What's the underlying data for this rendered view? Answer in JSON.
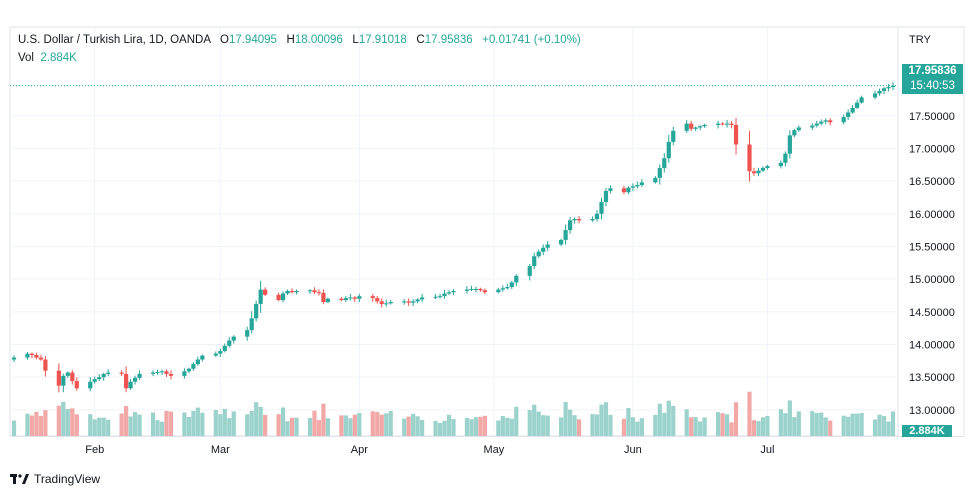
{
  "legend": {
    "symbol": "U.S. Dollar / Turkish Lira, 1D, OANDA",
    "open_label": "O",
    "open": "17.94095",
    "high_label": "H",
    "high": "18.00096",
    "low_label": "L",
    "low": "17.91018",
    "close_label": "C",
    "close": "17.95836",
    "change": "+0.01741 (+0.10%)",
    "vol_label": "Vol",
    "vol_value": "2.884K"
  },
  "axis": {
    "currency": "TRY",
    "last_price": "17.95836",
    "countdown": "15:40:53",
    "last_volume": "2.884K"
  },
  "brand": {
    "name": "TradingView"
  },
  "colors": {
    "up": "#26a69a",
    "down": "#ef5350",
    "vol_up": "#9bd3cc",
    "vol_down": "#f2a8a6",
    "grid": "#f0f3fa"
  },
  "chart_data": {
    "type": "candlestick",
    "y_ticks": [
      "13.00000",
      "13.50000",
      "14.00000",
      "14.50000",
      "15.00000",
      "15.50000",
      "16.00000",
      "16.50000",
      "17.00000",
      "17.50000"
    ],
    "ylim": [
      12.6,
      18.2
    ],
    "x_ticks": [
      "Feb",
      "Mar",
      "Apr",
      "May",
      "Jun",
      "Jul"
    ],
    "series": [
      {
        "name": "USDTRY",
        "points": [
          {
            "d": "2022-01-14",
            "c": 13.8
          },
          {
            "d": "2022-01-17",
            "c": 13.86
          },
          {
            "d": "2022-01-18",
            "c": 13.84
          },
          {
            "d": "2022-01-19",
            "c": 13.8
          },
          {
            "d": "2022-01-20",
            "c": 13.77
          },
          {
            "d": "2022-01-21",
            "c": 13.6
          },
          {
            "d": "2022-01-24",
            "c": 13.37
          },
          {
            "d": "2022-01-25",
            "c": 13.52
          },
          {
            "d": "2022-01-26",
            "c": 13.57
          },
          {
            "d": "2022-01-27",
            "c": 13.44
          },
          {
            "d": "2022-01-28",
            "c": 13.33
          },
          {
            "d": "2022-01-31",
            "c": 13.43
          },
          {
            "d": "2022-02-01",
            "c": 13.47
          },
          {
            "d": "2022-02-02",
            "c": 13.5
          },
          {
            "d": "2022-02-03",
            "c": 13.55
          },
          {
            "d": "2022-02-04",
            "c": 13.57
          },
          {
            "d": "2022-02-07",
            "c": 13.55
          },
          {
            "d": "2022-02-08",
            "c": 13.33
          },
          {
            "d": "2022-02-09",
            "c": 13.43
          },
          {
            "d": "2022-02-10",
            "c": 13.49
          },
          {
            "d": "2022-02-11",
            "c": 13.55
          },
          {
            "d": "2022-02-14",
            "c": 13.57
          },
          {
            "d": "2022-02-15",
            "c": 13.58
          },
          {
            "d": "2022-02-16",
            "c": 13.59
          },
          {
            "d": "2022-02-17",
            "c": 13.55
          },
          {
            "d": "2022-02-18",
            "c": 13.52
          },
          {
            "d": "2022-02-21",
            "c": 13.59
          },
          {
            "d": "2022-02-22",
            "c": 13.63
          },
          {
            "d": "2022-02-23",
            "c": 13.7
          },
          {
            "d": "2022-02-24",
            "c": 13.77
          },
          {
            "d": "2022-02-25",
            "c": 13.83
          },
          {
            "d": "2022-02-28",
            "c": 13.86
          },
          {
            "d": "2022-03-01",
            "c": 13.9
          },
          {
            "d": "2022-03-02",
            "c": 13.98
          },
          {
            "d": "2022-03-03",
            "c": 14.06
          },
          {
            "d": "2022-03-04",
            "c": 14.12
          },
          {
            "d": "2022-03-07",
            "c": 14.22
          },
          {
            "d": "2022-03-08",
            "c": 14.4
          },
          {
            "d": "2022-03-09",
            "c": 14.62
          },
          {
            "d": "2022-03-10",
            "c": 14.84
          },
          {
            "d": "2022-03-11",
            "c": 14.76
          },
          {
            "d": "2022-03-14",
            "c": 14.68
          },
          {
            "d": "2022-03-15",
            "c": 14.78
          },
          {
            "d": "2022-03-16",
            "c": 14.82
          },
          {
            "d": "2022-03-17",
            "c": 14.8
          },
          {
            "d": "2022-03-18",
            "c": 14.82
          },
          {
            "d": "2022-03-21",
            "c": 14.83
          },
          {
            "d": "2022-03-22",
            "c": 14.8
          },
          {
            "d": "2022-03-23",
            "c": 14.79
          },
          {
            "d": "2022-03-24",
            "c": 14.65
          },
          {
            "d": "2022-03-25",
            "c": 14.7
          },
          {
            "d": "2022-03-28",
            "c": 14.68
          },
          {
            "d": "2022-03-29",
            "c": 14.71
          },
          {
            "d": "2022-03-30",
            "c": 14.72
          },
          {
            "d": "2022-03-31",
            "c": 14.7
          },
          {
            "d": "2022-04-01",
            "c": 14.74
          },
          {
            "d": "2022-04-04",
            "c": 14.71
          },
          {
            "d": "2022-04-05",
            "c": 14.66
          },
          {
            "d": "2022-04-06",
            "c": 14.62
          },
          {
            "d": "2022-04-07",
            "c": 14.63
          },
          {
            "d": "2022-04-08",
            "c": 14.65
          },
          {
            "d": "2022-04-11",
            "c": 14.66
          },
          {
            "d": "2022-04-12",
            "c": 14.64
          },
          {
            "d": "2022-04-13",
            "c": 14.66
          },
          {
            "d": "2022-04-14",
            "c": 14.69
          },
          {
            "d": "2022-04-15",
            "c": 14.72
          },
          {
            "d": "2022-04-18",
            "c": 14.73
          },
          {
            "d": "2022-04-19",
            "c": 14.74
          },
          {
            "d": "2022-04-20",
            "c": 14.78
          },
          {
            "d": "2022-04-21",
            "c": 14.8
          },
          {
            "d": "2022-04-22",
            "c": 14.82
          },
          {
            "d": "2022-04-25",
            "c": 14.84
          },
          {
            "d": "2022-04-26",
            "c": 14.85
          },
          {
            "d": "2022-04-27",
            "c": 14.85
          },
          {
            "d": "2022-04-28",
            "c": 14.83
          },
          {
            "d": "2022-04-29",
            "c": 14.8
          },
          {
            "d": "2022-05-02",
            "c": 14.84
          },
          {
            "d": "2022-05-03",
            "c": 14.86
          },
          {
            "d": "2022-05-04",
            "c": 14.88
          },
          {
            "d": "2022-05-05",
            "c": 14.95
          },
          {
            "d": "2022-05-06",
            "c": 15.05
          },
          {
            "d": "2022-05-09",
            "c": 15.2
          },
          {
            "d": "2022-05-10",
            "c": 15.35
          },
          {
            "d": "2022-05-11",
            "c": 15.42
          },
          {
            "d": "2022-05-12",
            "c": 15.48
          },
          {
            "d": "2022-05-13",
            "c": 15.53
          },
          {
            "d": "2022-05-16",
            "c": 15.6
          },
          {
            "d": "2022-05-17",
            "c": 15.75
          },
          {
            "d": "2022-05-18",
            "c": 15.9
          },
          {
            "d": "2022-05-19",
            "c": 15.92
          },
          {
            "d": "2022-05-20",
            "c": 15.9
          },
          {
            "d": "2022-05-23",
            "c": 15.92
          },
          {
            "d": "2022-05-24",
            "c": 16.0
          },
          {
            "d": "2022-05-25",
            "c": 16.18
          },
          {
            "d": "2022-05-26",
            "c": 16.35
          },
          {
            "d": "2022-05-27",
            "c": 16.39
          },
          {
            "d": "2022-05-30",
            "c": 16.33
          },
          {
            "d": "2022-05-31",
            "c": 16.4
          },
          {
            "d": "2022-06-01",
            "c": 16.42
          },
          {
            "d": "2022-06-02",
            "c": 16.44
          },
          {
            "d": "2022-06-03",
            "c": 16.48
          },
          {
            "d": "2022-06-06",
            "c": 16.55
          },
          {
            "d": "2022-06-07",
            "c": 16.7
          },
          {
            "d": "2022-06-08",
            "c": 16.85
          },
          {
            "d": "2022-06-09",
            "c": 17.1
          },
          {
            "d": "2022-06-10",
            "c": 17.27
          },
          {
            "d": "2022-06-13",
            "c": 17.38
          },
          {
            "d": "2022-06-14",
            "c": 17.3
          },
          {
            "d": "2022-06-15",
            "c": 17.32
          },
          {
            "d": "2022-06-16",
            "c": 17.34
          },
          {
            "d": "2022-06-17",
            "c": 17.36
          },
          {
            "d": "2022-06-20",
            "c": 17.38
          },
          {
            "d": "2022-06-21",
            "c": 17.37
          },
          {
            "d": "2022-06-22",
            "c": 17.38
          },
          {
            "d": "2022-06-23",
            "c": 17.36
          },
          {
            "d": "2022-06-24",
            "c": 17.06
          },
          {
            "d": "2022-06-27",
            "c": 16.65
          },
          {
            "d": "2022-06-28",
            "c": 16.62
          },
          {
            "d": "2022-06-29",
            "c": 16.66
          },
          {
            "d": "2022-06-30",
            "c": 16.7
          },
          {
            "d": "2022-07-01",
            "c": 16.73
          },
          {
            "d": "2022-07-04",
            "c": 16.78
          },
          {
            "d": "2022-07-05",
            "c": 16.92
          },
          {
            "d": "2022-07-06",
            "c": 17.2
          },
          {
            "d": "2022-07-07",
            "c": 17.28
          },
          {
            "d": "2022-07-08",
            "c": 17.32
          },
          {
            "d": "2022-07-11",
            "c": 17.35
          },
          {
            "d": "2022-07-12",
            "c": 17.38
          },
          {
            "d": "2022-07-13",
            "c": 17.41
          },
          {
            "d": "2022-07-14",
            "c": 17.43
          },
          {
            "d": "2022-07-15",
            "c": 17.4
          },
          {
            "d": "2022-07-18",
            "c": 17.48
          },
          {
            "d": "2022-07-19",
            "c": 17.55
          },
          {
            "d": "2022-07-20",
            "c": 17.62
          },
          {
            "d": "2022-07-21",
            "c": 17.7
          },
          {
            "d": "2022-07-22",
            "c": 17.78
          },
          {
            "d": "2022-07-25",
            "c": 17.84
          },
          {
            "d": "2022-07-26",
            "c": 17.88
          },
          {
            "d": "2022-07-27",
            "c": 17.92
          },
          {
            "d": "2022-07-28",
            "c": 17.94
          },
          {
            "d": "2022-07-29",
            "c": 17.96
          }
        ]
      }
    ]
  }
}
